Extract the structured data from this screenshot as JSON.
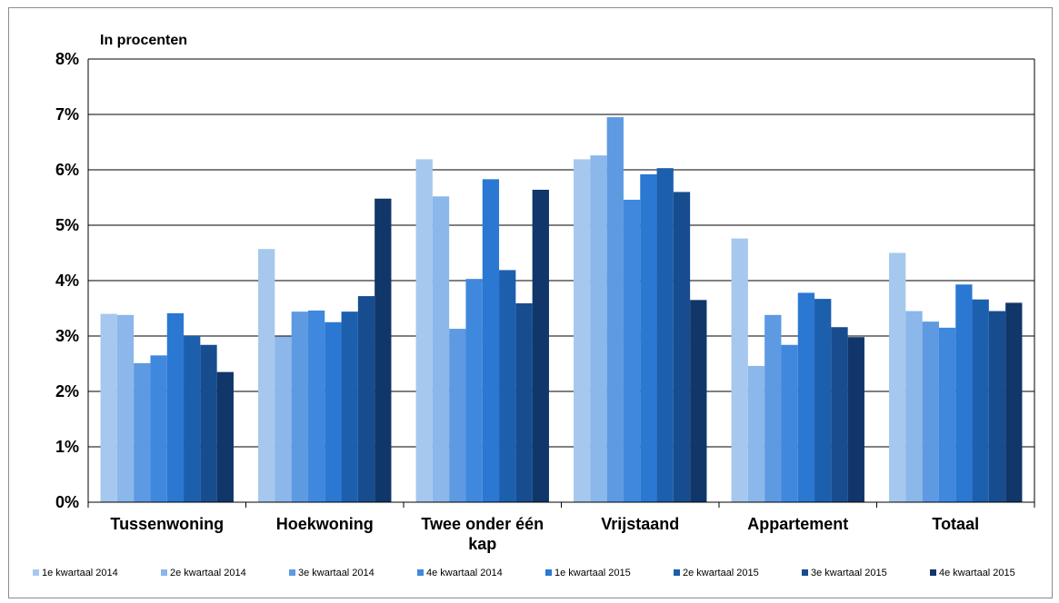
{
  "chart_data": {
    "type": "bar",
    "ylabel": "In procenten",
    "ylim": [
      0,
      8
    ],
    "yticks": [
      "0%",
      "1%",
      "2%",
      "3%",
      "4%",
      "5%",
      "6%",
      "7%",
      "8%"
    ],
    "grid": true,
    "legend_position": "bottom",
    "categories": [
      "Tussenwoning",
      "Hoekwoning",
      "Twee onder één kap",
      "Vrijstaand",
      "Appartement",
      "Totaal"
    ],
    "series": [
      {
        "name": "1e kwartaal 2014",
        "color": "#a6c8ee",
        "values": [
          3.4,
          4.57,
          6.19,
          6.19,
          4.76,
          4.5
        ]
      },
      {
        "name": "2e kwartaal 2014",
        "color": "#8bb7ea",
        "values": [
          3.38,
          2.99,
          5.52,
          6.26,
          2.46,
          3.45
        ]
      },
      {
        "name": "3e kwartaal 2014",
        "color": "#5d9ae2",
        "values": [
          2.51,
          3.44,
          3.13,
          6.95,
          3.38,
          3.26
        ]
      },
      {
        "name": "4e kwartaal 2014",
        "color": "#3f88dd",
        "values": [
          2.65,
          3.46,
          4.03,
          5.46,
          2.84,
          3.15
        ]
      },
      {
        "name": "1e kwartaal 2015",
        "color": "#2a78d2",
        "values": [
          3.41,
          3.25,
          5.83,
          5.92,
          3.78,
          3.93
        ]
      },
      {
        "name": "2e kwartaal 2015",
        "color": "#1c5fac",
        "values": [
          3.0,
          3.44,
          4.19,
          6.03,
          3.67,
          3.66
        ]
      },
      {
        "name": "3e kwartaal 2015",
        "color": "#174d8e",
        "values": [
          2.84,
          3.72,
          3.59,
          5.6,
          3.16,
          3.45
        ]
      },
      {
        "name": "4e kwartaal 2015",
        "color": "#10366a",
        "values": [
          2.35,
          5.48,
          5.64,
          3.65,
          2.98,
          3.6
        ]
      }
    ]
  }
}
